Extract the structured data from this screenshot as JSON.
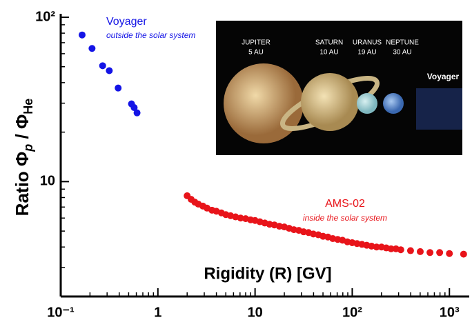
{
  "chart_data": {
    "type": "scatter",
    "x_label": "Rigidity (R) [GV]",
    "y_label": {
      "text": "Ratio",
      "phi1": "Φ",
      "sub1": "p",
      "slash": "/",
      "phi2": "Φ",
      "sub2": "He"
    },
    "log_x": true,
    "log_y": true,
    "xlim": [
      0.1,
      1600
    ],
    "ylim": [
      2,
      100
    ],
    "xticks": [
      {
        "value": 0.1,
        "label": "10⁻¹"
      },
      1,
      10,
      {
        "value": 100,
        "label": "10²"
      },
      {
        "value": 1000,
        "label": "10³"
      }
    ],
    "yticks": [
      10,
      {
        "value": 100,
        "label": "10²"
      }
    ],
    "series": [
      {
        "name": "Voyager",
        "note": "outside the solar system",
        "color": "#1414e6",
        "x": [
          0.166,
          0.21,
          0.27,
          0.316,
          0.39,
          0.535,
          0.57,
          0.61
        ],
        "values": [
          78,
          64.6,
          50.7,
          47.3,
          37.1,
          29.7,
          28.2,
          26.2
        ]
      },
      {
        "name": "AMS-02",
        "note": "inside the solar system",
        "color": "#e8141a",
        "x": [
          2.0,
          2.2,
          2.4,
          2.6,
          2.9,
          3.2,
          3.6,
          4.0,
          4.5,
          5.0,
          5.6,
          6.3,
          7.1,
          8.0,
          9.0,
          10,
          11.2,
          12.6,
          14.1,
          15.8,
          17.8,
          20,
          22.4,
          25.1,
          28.2,
          31.6,
          35.5,
          39.8,
          44.7,
          50.1,
          56.2,
          63.1,
          70.8,
          79.4,
          89.1,
          100,
          112,
          126,
          141,
          158,
          178,
          200,
          224,
          251,
          282,
          316,
          398,
          501,
          631,
          794,
          1000,
          1400
        ],
        "values": [
          8.2,
          7.8,
          7.5,
          7.3,
          7.1,
          6.9,
          6.7,
          6.6,
          6.45,
          6.3,
          6.2,
          6.1,
          6.0,
          5.95,
          5.85,
          5.8,
          5.7,
          5.6,
          5.5,
          5.45,
          5.35,
          5.3,
          5.2,
          5.1,
          5.05,
          4.95,
          4.9,
          4.8,
          4.75,
          4.65,
          4.6,
          4.5,
          4.45,
          4.4,
          4.3,
          4.25,
          4.2,
          4.15,
          4.1,
          4.05,
          4.0,
          4.0,
          3.95,
          3.9,
          3.9,
          3.85,
          3.8,
          3.75,
          3.7,
          3.7,
          3.65,
          3.62
        ]
      }
    ]
  },
  "inset": {
    "planets": [
      {
        "name": "JUPITER",
        "distance": "5 AU"
      },
      {
        "name": "SATURN",
        "distance": "10 AU"
      },
      {
        "name": "URANUS",
        "distance": "19 AU"
      },
      {
        "name": "NEPTUNE",
        "distance": "30 AU"
      }
    ],
    "probe": "Voyager"
  }
}
